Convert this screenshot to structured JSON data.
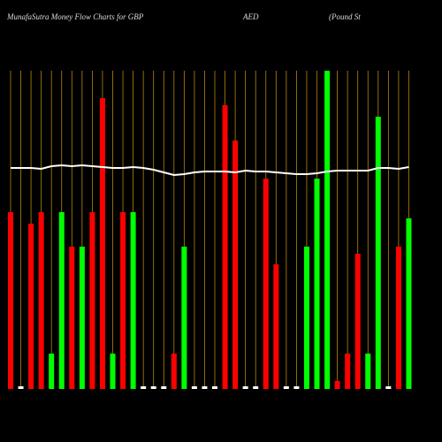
{
  "chart_data": {
    "type": "bar",
    "title": [
      "MunafaSutra  Money Flow  Charts for GBP",
      "AED",
      "(Pound St"
    ],
    "categories": [
      null,
      null,
      null,
      null,
      null,
      null,
      null,
      null,
      null,
      null,
      null,
      null,
      null,
      null,
      null,
      null,
      null,
      null,
      null,
      null,
      null,
      null,
      null,
      null,
      null,
      null,
      null,
      null,
      null,
      null,
      null,
      null,
      null,
      null,
      null,
      null,
      null,
      null,
      null,
      null
    ],
    "values": [
      200,
      3,
      187,
      200,
      40,
      200,
      161,
      161,
      200,
      329,
      40,
      200,
      200,
      3,
      3,
      3,
      40,
      161,
      3,
      3,
      3,
      321,
      281,
      3,
      3,
      238,
      141,
      3,
      3,
      161,
      238,
      360,
      9,
      40,
      153,
      40,
      308,
      3,
      161,
      193
    ],
    "colors": [
      "#ff0000",
      "#ffffff",
      "#ff0000",
      "#ff0000",
      "#00ff00",
      "#00ff00",
      "#ff0000",
      "#00ff00",
      "#ff0000",
      "#ff0000",
      "#00ff00",
      "#ff0000",
      "#00ff00",
      "#ffffff",
      "#ffffff",
      "#ffffff",
      "#ff0000",
      "#00ff00",
      "#ffffff",
      "#ffffff",
      "#ffffff",
      "#ff0000",
      "#ff0000",
      "#ffffff",
      "#ffffff",
      "#ff0000",
      "#ff0000",
      "#ffffff",
      "#ffffff",
      "#00ff00",
      "#00ff00",
      "#00ff00",
      "#ff0000",
      "#ff0000",
      "#ff0000",
      "#00ff00",
      "#00ff00",
      "#ffffff",
      "#ff0000",
      "#00ff00"
    ],
    "line": {
      "color": "#ffffff",
      "values": [
        250,
        250,
        250,
        249,
        252,
        253,
        252,
        253,
        252,
        251,
        250,
        250,
        251,
        250,
        248,
        245,
        242,
        243,
        245,
        246,
        246,
        246,
        245,
        247,
        246,
        246,
        245,
        244,
        243,
        243,
        244,
        246,
        247,
        247,
        247,
        247,
        250,
        250,
        249,
        251
      ]
    },
    "ylim": [
      0,
      360
    ],
    "grid": "x",
    "grid_color": "#b8860b"
  }
}
